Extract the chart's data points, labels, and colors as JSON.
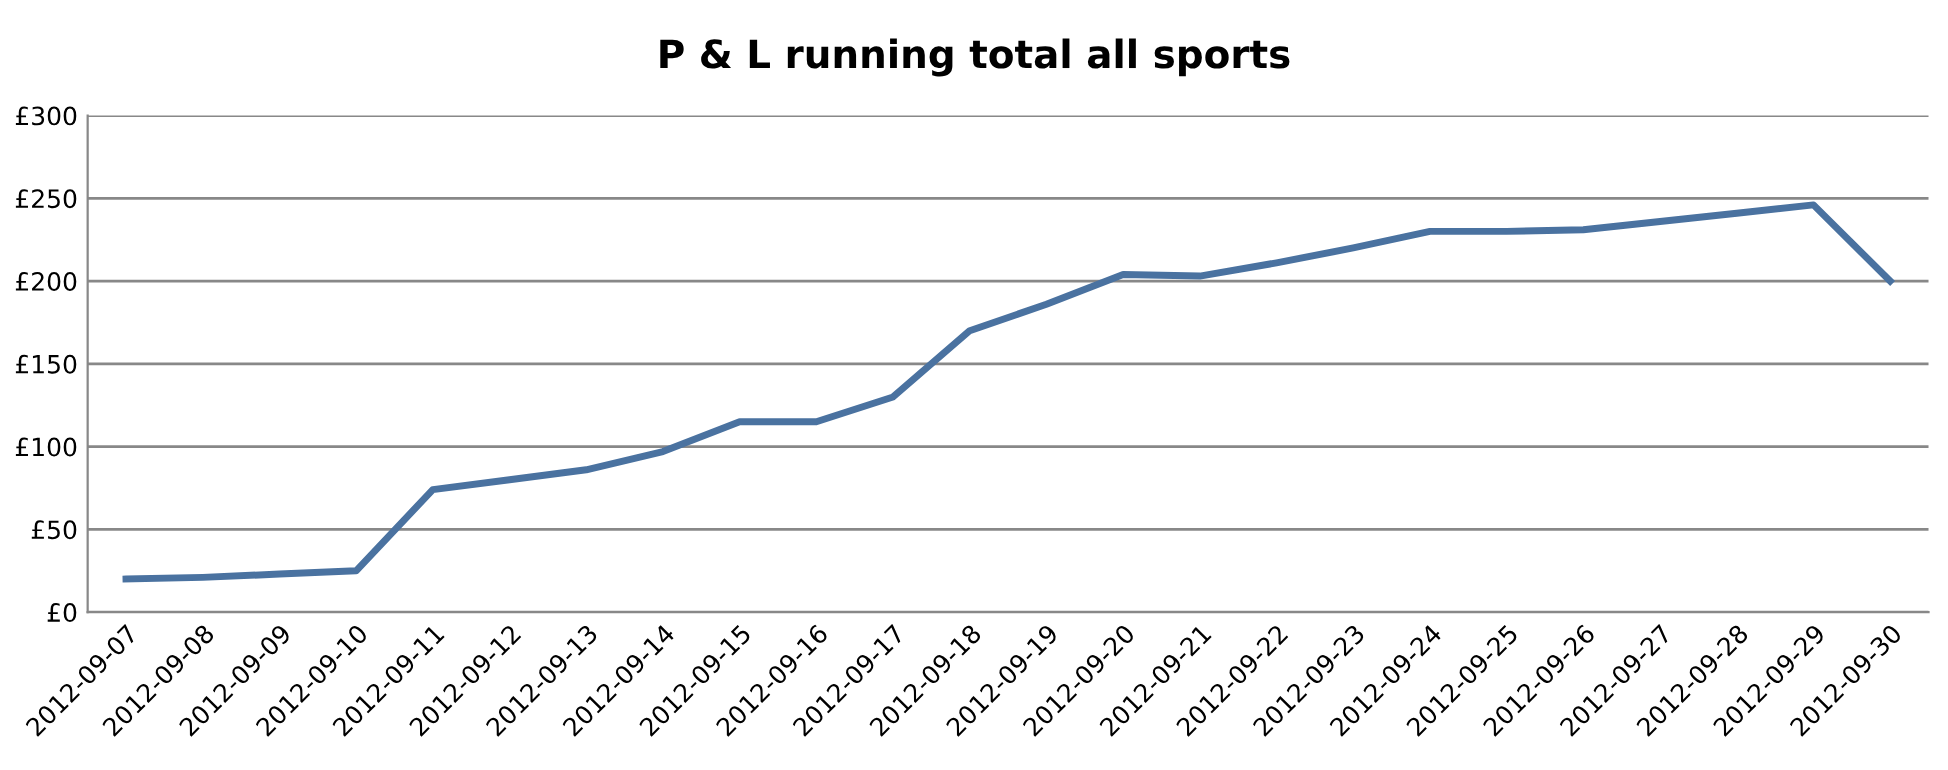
{
  "chart_data": {
    "type": "line",
    "title": "P & L running total all sports",
    "categories": [
      "2012-09-07",
      "2012-09-08",
      "2012-09-09",
      "2012-09-10",
      "2012-09-11",
      "2012-09-12",
      "2012-09-13",
      "2012-09-14",
      "2012-09-15",
      "2012-09-16",
      "2012-09-17",
      "2012-09-18",
      "2012-09-19",
      "2012-09-20",
      "2012-09-21",
      "2012-09-22",
      "2012-09-23",
      "2012-09-24",
      "2012-09-25",
      "2012-09-26",
      "2012-09-27",
      "2012-09-28",
      "2012-09-29",
      "2012-09-30"
    ],
    "series": [
      {
        "color": "#4a72a0",
        "values": [
          20,
          21,
          23,
          25,
          74,
          80,
          86,
          97,
          115,
          115,
          130,
          170,
          186,
          204,
          203,
          211,
          220,
          230,
          230,
          231,
          236,
          241,
          246,
          200
        ]
      }
    ],
    "ylim": [
      0,
      300
    ],
    "yticks": [
      {
        "value": 0,
        "label": "£0"
      },
      {
        "value": 50,
        "label": "£50"
      },
      {
        "value": 100,
        "label": "£100"
      },
      {
        "value": 150,
        "label": "£150"
      },
      {
        "value": 200,
        "label": "£200"
      },
      {
        "value": 250,
        "label": "£250"
      },
      {
        "value": 300,
        "label": "£300"
      }
    ],
    "grid": "y",
    "marker": "none",
    "line_style": "solid"
  }
}
